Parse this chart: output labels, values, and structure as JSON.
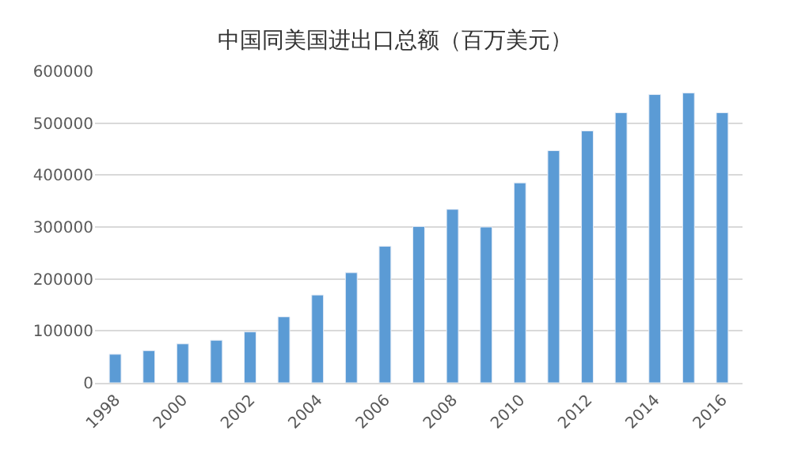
{
  "chart_data": {
    "type": "bar",
    "title": "中国同美国进出口总额（百万美元）",
    "categories": [
      "1998",
      null,
      "2000",
      null,
      "2002",
      null,
      "2004",
      null,
      "2006",
      null,
      "2008",
      null,
      "2010",
      null,
      "2012",
      null,
      "2014",
      null,
      "2016"
    ],
    "values": [
      55000,
      62000,
      75000,
      82000,
      98000,
      127000,
      169000,
      212000,
      263000,
      301000,
      334000,
      300000,
      385000,
      447000,
      485000,
      520000,
      555000,
      558000,
      520000
    ],
    "color": "#5b9bd5",
    "ylim": [
      0,
      600000
    ],
    "yticks": [
      0,
      100000,
      200000,
      300000,
      400000,
      500000,
      600000
    ],
    "grid": "y"
  }
}
